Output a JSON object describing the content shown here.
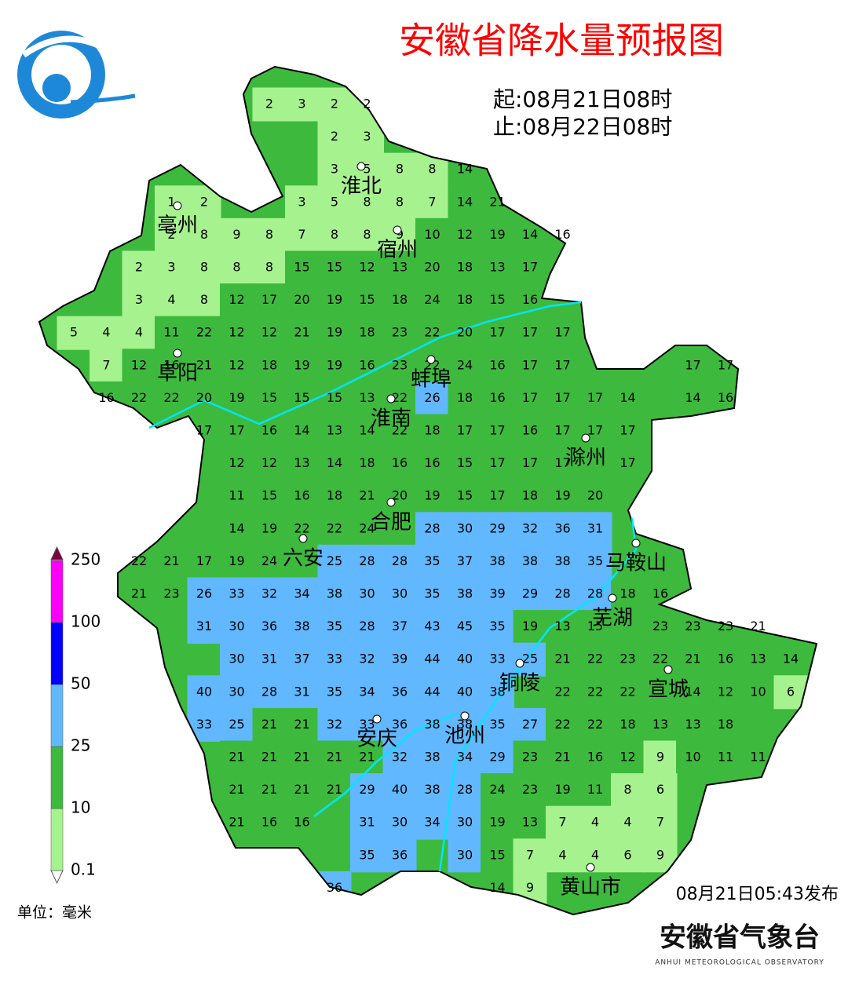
{
  "header": {
    "title": "安徽省降水量预报图",
    "start": "起:08月21日08时",
    "end": "止:08月22日08时"
  },
  "legend": {
    "levels": [
      0.1,
      10,
      25,
      50,
      100,
      250
    ],
    "colors": [
      "#a6f28f",
      "#3dba3d",
      "#61b8ff",
      "#0000ff",
      "#fa00fa"
    ],
    "unit": "单位：毫米"
  },
  "cities": [
    "淮北",
    "亳州",
    "宿州",
    "阜阳",
    "蚌埠",
    "淮南",
    "滁州",
    "合肥",
    "六安",
    "马鞍山",
    "芜湖",
    "铜陵",
    "宣城",
    "安庆",
    "池州",
    "黄山市"
  ],
  "grid": [
    [
      null,
      null,
      null,
      null,
      null,
      null,
      2,
      3,
      2,
      2
    ],
    [
      null,
      null,
      null,
      null,
      null,
      null,
      null,
      null,
      2,
      3
    ],
    [
      null,
      null,
      null,
      null,
      null,
      null,
      null,
      null,
      3,
      5,
      8,
      8,
      14
    ],
    [
      null,
      null,
      null,
      1,
      2,
      null,
      null,
      3,
      5,
      8,
      8,
      7,
      14,
      21
    ],
    [
      null,
      null,
      null,
      2,
      8,
      9,
      8,
      7,
      8,
      8,
      9,
      10,
      12,
      19,
      14,
      16
    ],
    [
      null,
      null,
      2,
      3,
      8,
      8,
      8,
      15,
      15,
      12,
      13,
      20,
      18,
      13,
      17
    ],
    [
      null,
      null,
      3,
      4,
      8,
      12,
      17,
      20,
      19,
      15,
      18,
      24,
      18,
      15,
      16
    ],
    [
      5,
      4,
      4,
      11,
      22,
      12,
      12,
      21,
      19,
      18,
      23,
      22,
      20,
      17,
      17,
      17
    ],
    [
      null,
      7,
      12,
      16,
      21,
      12,
      18,
      19,
      19,
      16,
      23,
      22,
      24,
      16,
      17,
      17,
      null,
      null,
      null,
      17,
      17
    ],
    [
      null,
      16,
      22,
      22,
      20,
      19,
      15,
      15,
      15,
      13,
      22,
      26,
      18,
      16,
      17,
      17,
      17,
      14,
      null,
      14,
      16
    ],
    [
      null,
      null,
      null,
      null,
      17,
      17,
      16,
      14,
      13,
      14,
      22,
      18,
      17,
      17,
      16,
      17,
      17,
      17
    ],
    [
      null,
      null,
      null,
      null,
      null,
      12,
      12,
      13,
      14,
      18,
      16,
      16,
      15,
      17,
      17,
      17,
      null,
      17
    ],
    [
      null,
      null,
      null,
      null,
      null,
      11,
      15,
      16,
      18,
      21,
      20,
      19,
      15,
      17,
      18,
      19,
      20
    ],
    [
      null,
      null,
      null,
      null,
      null,
      14,
      19,
      22,
      22,
      24,
      null,
      28,
      30,
      29,
      32,
      36,
      31
    ],
    [
      null,
      null,
      22,
      21,
      17,
      19,
      24,
      null,
      25,
      28,
      28,
      35,
      37,
      38,
      38,
      38,
      35
    ],
    [
      null,
      null,
      21,
      23,
      26,
      33,
      32,
      34,
      38,
      30,
      30,
      35,
      38,
      39,
      29,
      28,
      28,
      18,
      16
    ],
    [
      null,
      null,
      null,
      null,
      31,
      30,
      36,
      38,
      35,
      28,
      37,
      43,
      45,
      35,
      19,
      13,
      15,
      null,
      23,
      23,
      23,
      21
    ],
    [
      null,
      null,
      null,
      null,
      null,
      30,
      31,
      37,
      33,
      32,
      39,
      44,
      40,
      33,
      25,
      21,
      22,
      23,
      22,
      21,
      16,
      13,
      14
    ],
    [
      null,
      null,
      null,
      null,
      40,
      30,
      28,
      31,
      35,
      34,
      36,
      44,
      40,
      38,
      null,
      22,
      22,
      22,
      null,
      14,
      12,
      10,
      6
    ],
    [
      null,
      null,
      null,
      null,
      33,
      25,
      21,
      21,
      32,
      33,
      36,
      38,
      38,
      35,
      27,
      22,
      22,
      18,
      13,
      13,
      18
    ],
    [
      null,
      null,
      null,
      null,
      null,
      21,
      21,
      21,
      21,
      21,
      32,
      38,
      34,
      29,
      23,
      21,
      16,
      12,
      9,
      10,
      11,
      11
    ],
    [
      null,
      null,
      null,
      null,
      null,
      21,
      21,
      21,
      21,
      29,
      40,
      38,
      28,
      24,
      23,
      19,
      11,
      8,
      6
    ],
    [
      null,
      null,
      null,
      null,
      null,
      21,
      16,
      16,
      null,
      31,
      30,
      34,
      30,
      19,
      13,
      7,
      4,
      4,
      7
    ],
    [
      null,
      null,
      null,
      null,
      null,
      null,
      null,
      null,
      null,
      35,
      36,
      null,
      30,
      15,
      7,
      4,
      4,
      6,
      9
    ],
    [
      null,
      null,
      null,
      null,
      null,
      null,
      null,
      null,
      36,
      null,
      null,
      null,
      null,
      14,
      9
    ]
  ],
  "footer": {
    "issued": "08月21日05:43发布",
    "org": "安徽省气象台",
    "org_en": "ANHUI METEOROLOGICAL OBSERVATORY"
  }
}
